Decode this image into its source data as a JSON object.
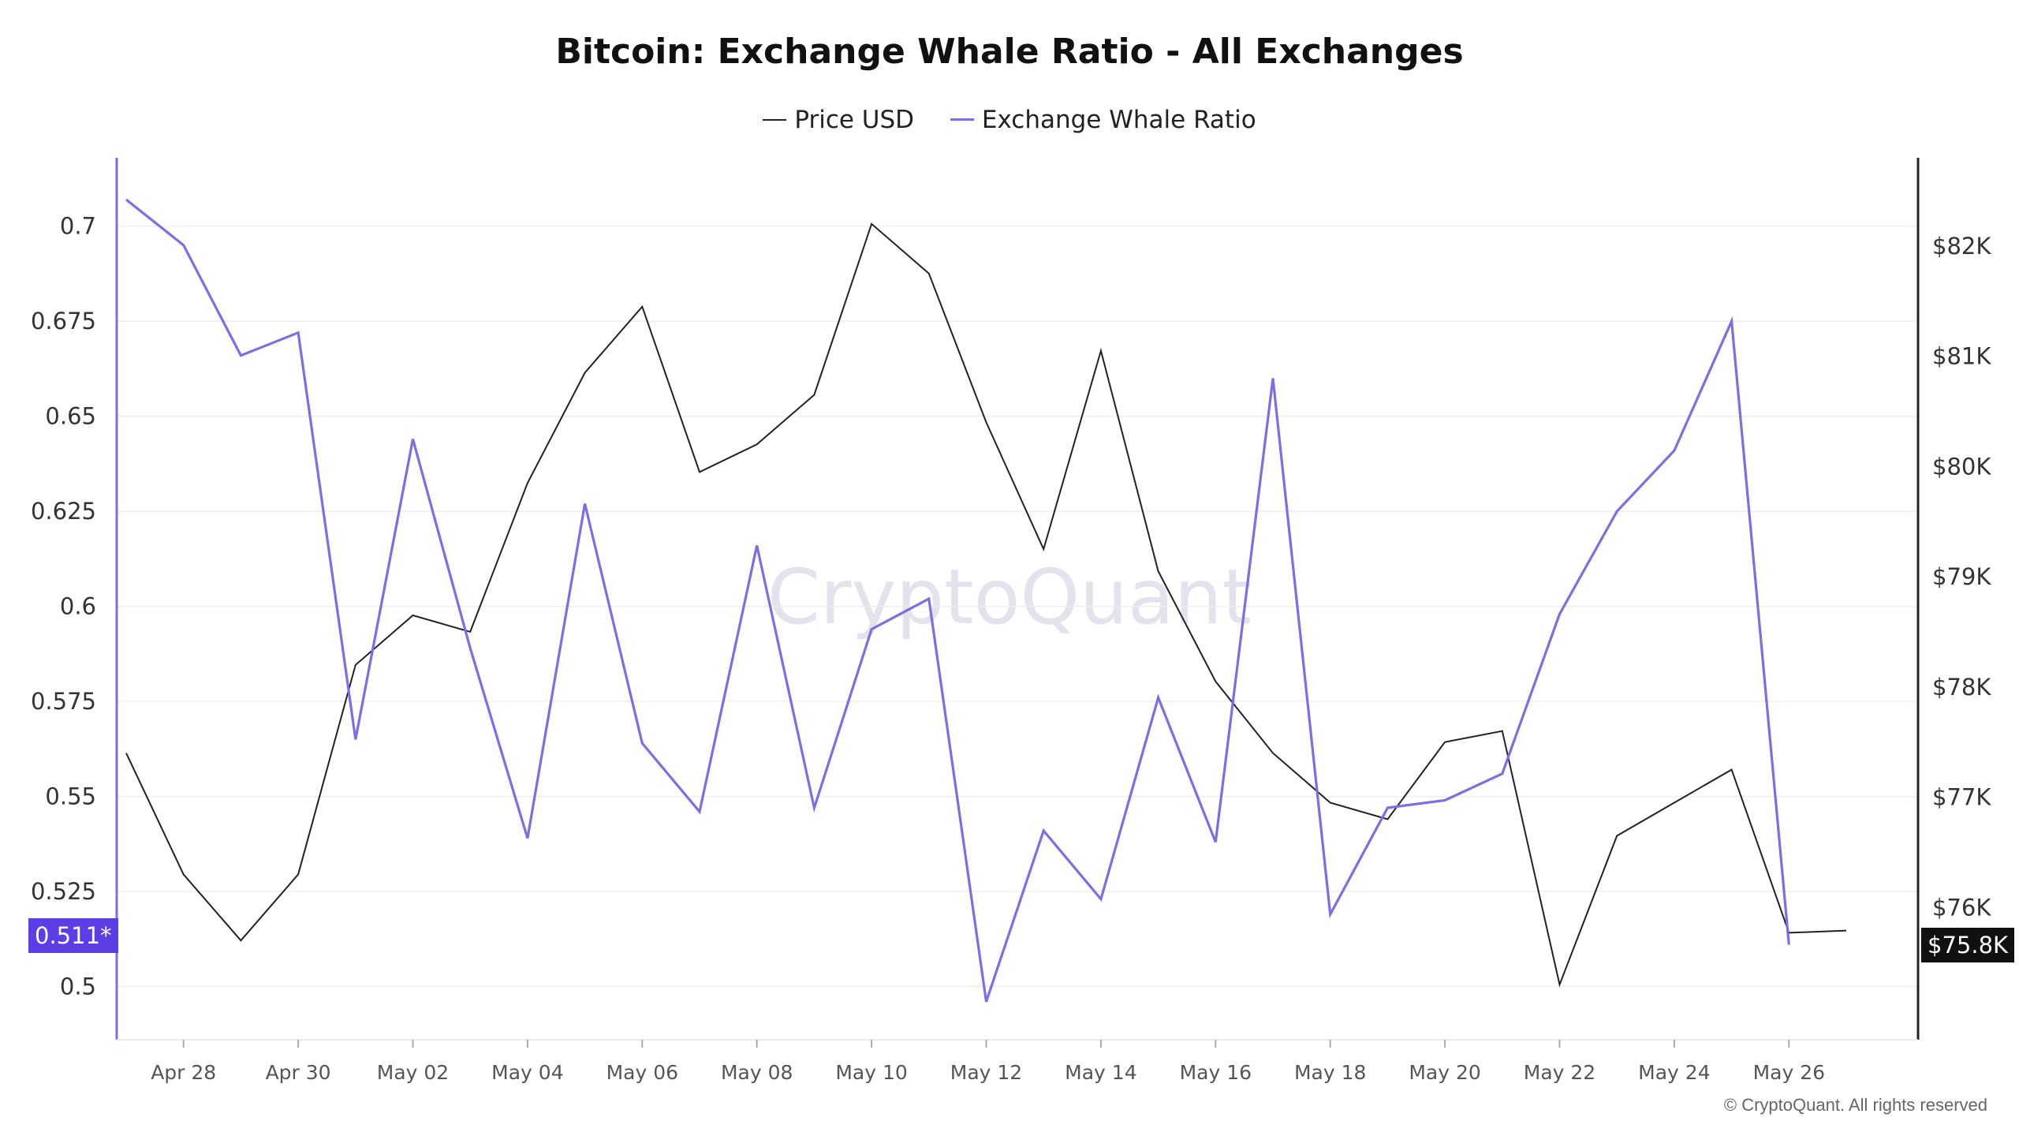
{
  "chart_data": {
    "type": "line",
    "title": "Bitcoin: Exchange Whale Ratio - All Exchanges",
    "x": [
      "Apr 27",
      "Apr 28",
      "Apr 29",
      "Apr 30",
      "May 01",
      "May 02",
      "May 03",
      "May 04",
      "May 05",
      "May 06",
      "May 07",
      "May 08",
      "May 09",
      "May 10",
      "May 11",
      "May 12",
      "May 13",
      "May 14",
      "May 15",
      "May 16",
      "May 17",
      "May 18",
      "May 19",
      "May 20",
      "May 21",
      "May 22",
      "May 23",
      "May 24",
      "May 25",
      "May 26",
      "May 27"
    ],
    "x_tick_labels": [
      "Apr 28",
      "Apr 30",
      "May 02",
      "May 04",
      "May 06",
      "May 08",
      "May 10",
      "May 12",
      "May 14",
      "May 16",
      "May 18",
      "May 20",
      "May 22",
      "May 24",
      "May 26"
    ],
    "series": [
      {
        "name": "Price USD",
        "axis": "right",
        "color": "#222222",
        "values": [
          77400,
          76300,
          75700,
          76300,
          78200,
          78650,
          78500,
          79850,
          80850,
          81450,
          79950,
          80200,
          80650,
          82200,
          81750,
          80400,
          79250,
          81050,
          79050,
          78050,
          77400,
          76950,
          76800,
          77500,
          77600,
          75300,
          76650,
          76950,
          77250,
          75770,
          75790
        ]
      },
      {
        "name": "Exchange Whale Ratio",
        "axis": "left",
        "color": "#7f6ce8",
        "values": [
          0.707,
          0.695,
          0.666,
          0.672,
          0.565,
          0.644,
          0.589,
          0.539,
          0.627,
          0.564,
          0.546,
          0.616,
          0.547,
          0.594,
          0.602,
          0.496,
          0.541,
          0.523,
          0.576,
          0.538,
          0.66,
          0.519,
          0.547,
          0.549,
          0.556,
          0.598,
          0.625,
          0.641,
          0.675,
          0.511,
          null
        ]
      }
    ],
    "y_left": {
      "ticks": [
        "0.5",
        "0.525",
        "0.55",
        "0.575",
        "0.6",
        "0.625",
        "0.65",
        "0.675",
        "0.7"
      ],
      "range": [
        0.486,
        0.718
      ],
      "current_value": "0.511*"
    },
    "y_right": {
      "ticks": [
        "$76K",
        "$77K",
        "$78K",
        "$79K",
        "$80K",
        "$81K",
        "$82K"
      ],
      "tick_values": [
        76000,
        77000,
        78000,
        79000,
        80000,
        81000,
        82000
      ],
      "range": [
        74800,
        82800
      ],
      "current_value": "$75.8K"
    },
    "grid": "horizontal",
    "legend_position": "top-center",
    "watermark": "CryptoQuant",
    "copyright": "© CryptoQuant. All rights reserved"
  }
}
